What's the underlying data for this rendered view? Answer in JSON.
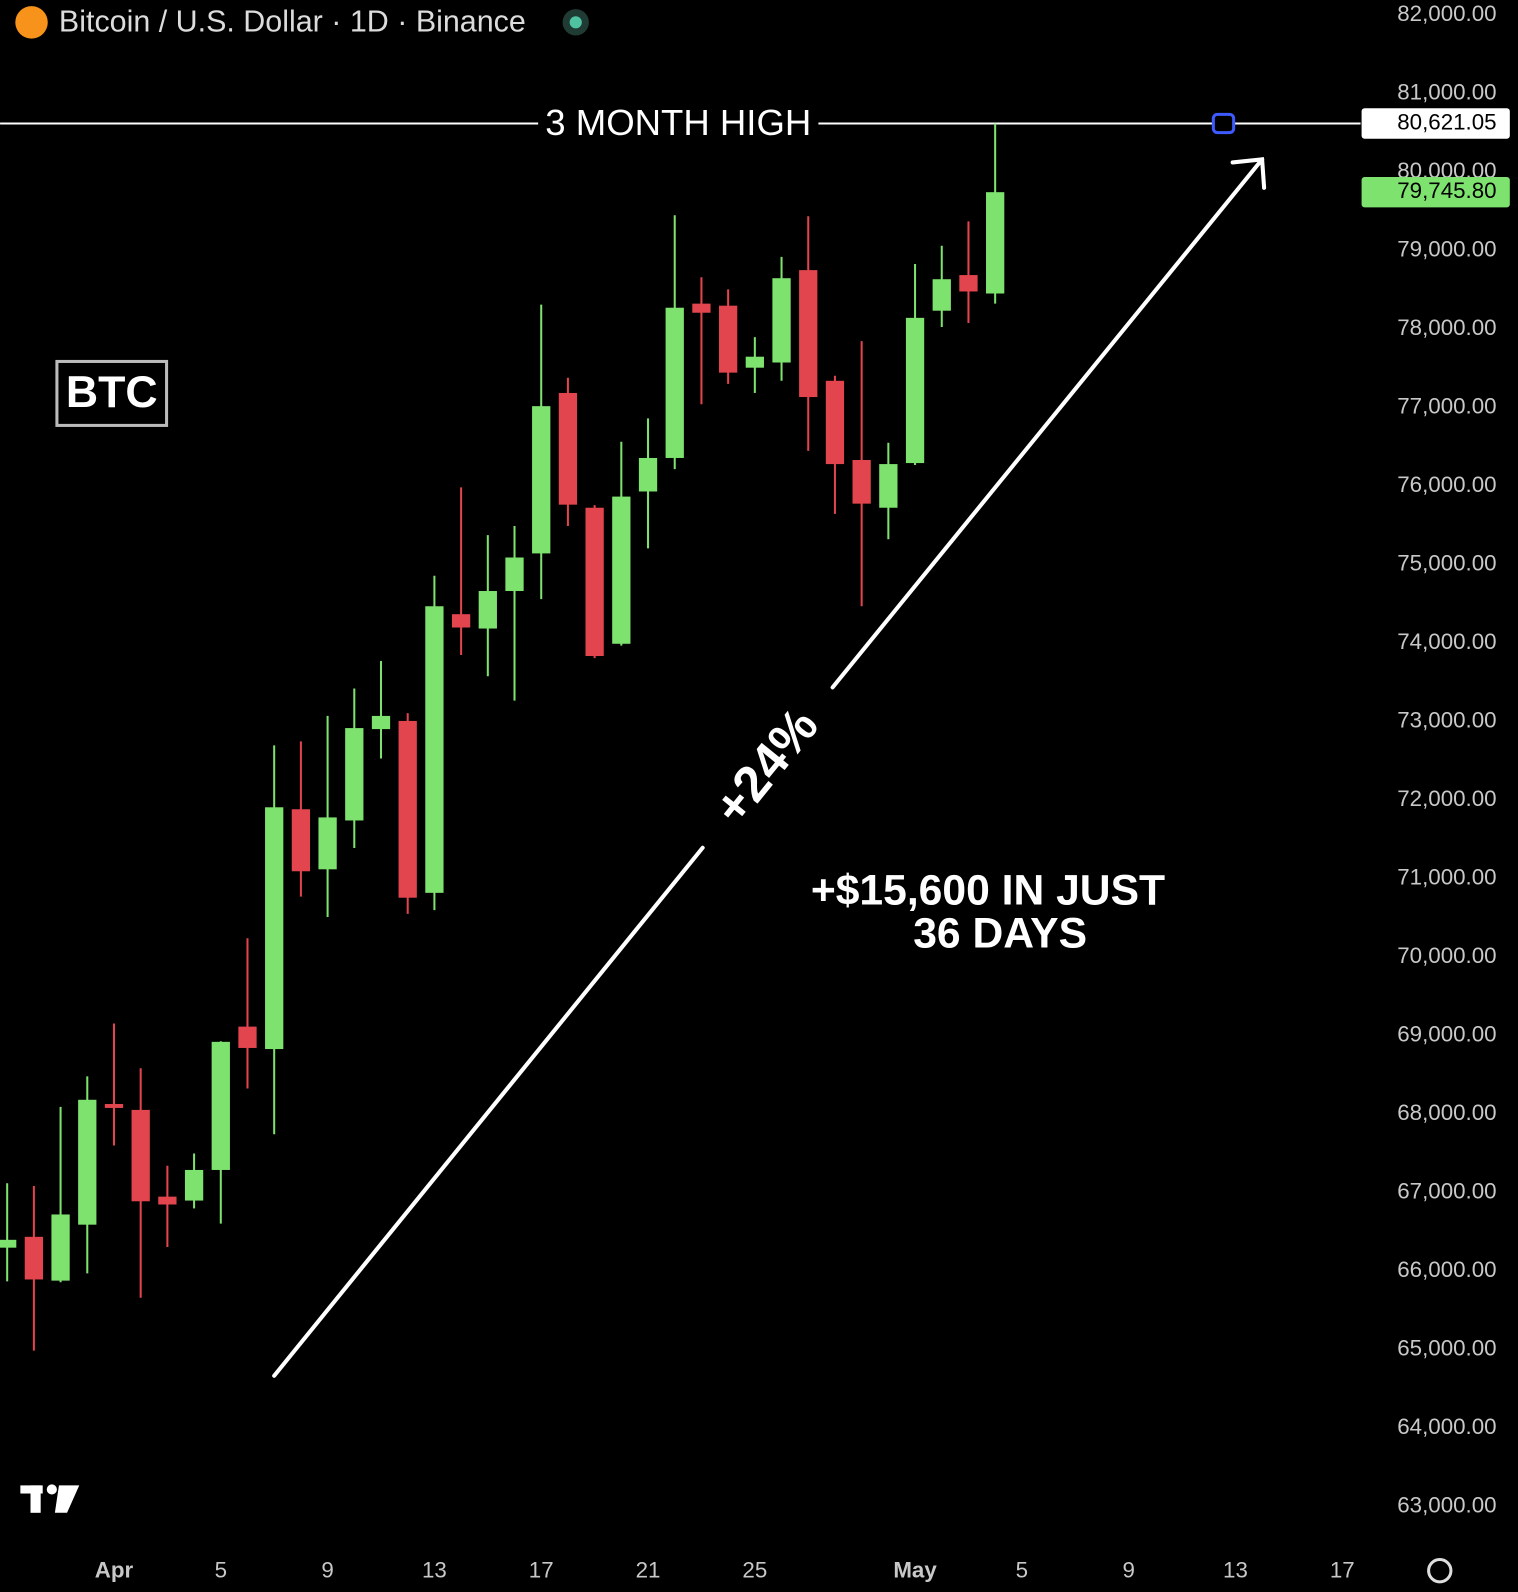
{
  "chart_data": {
    "type": "candlestick",
    "title": "Bitcoin / U.S. Dollar · 1D · Binance",
    "categories": [
      null,
      null,
      null,
      null,
      "Apr",
      null,
      null,
      null,
      "5",
      null,
      null,
      null,
      "9",
      null,
      null,
      null,
      "13",
      null,
      null,
      null,
      "17",
      null,
      null,
      null,
      "21",
      null,
      null,
      null,
      "25",
      null,
      null,
      null,
      null,
      null,
      "May",
      null,
      null,
      null,
      "5",
      null,
      null,
      null,
      "9",
      null,
      null,
      null,
      "13",
      null,
      null,
      null,
      "17"
    ],
    "open": [
      66300,
      66438,
      65880,
      66593,
      68130,
      68055,
      66950,
      66900,
      67290,
      69116,
      68830,
      71885,
      71120,
      71742,
      72906,
      73010,
      70820,
      74370,
      74187,
      74665,
      75144,
      77188,
      75726,
      73993,
      75933,
      76360,
      78326,
      78300,
      77510,
      77576,
      78753,
      77343,
      76334,
      75726,
      76295,
      78236,
      78690,
      78455,
      null,
      null,
      null,
      null,
      null,
      null,
      null,
      null,
      null,
      null,
      null,
      null,
      null
    ],
    "high": [
      67120,
      67085,
      68094,
      68482,
      69155,
      68586,
      67343,
      67500,
      68930,
      70241,
      72699,
      72750,
      73074,
      73423,
      73773,
      73110,
      74859,
      75985,
      75377,
      75493,
      78313,
      77382,
      75760,
      76567,
      76864,
      79452,
      78662,
      78507,
      77899,
      78921,
      79439,
      77408,
      77848,
      76554,
      78831,
      79064,
      79374,
      80621.05,
      null,
      null,
      null,
      null,
      null,
      null,
      null,
      null,
      null,
      null,
      null,
      null,
      null
    ],
    "low": [
      65870,
      64989,
      65860,
      65973,
      67602,
      65662,
      66309,
      66800,
      66606,
      68327,
      67745,
      70772,
      70513,
      71392,
      72531,
      70552,
      70600,
      73850,
      73579,
      73268,
      74562,
      75493,
      73810,
      73970,
      75209,
      76218,
      77045,
      77304,
      77188,
      77343,
      76450,
      75648,
      74471,
      75325,
      76270,
      78029,
      78080,
      78326,
      null,
      null,
      null,
      null,
      null,
      null,
      null,
      null,
      null,
      null,
      null,
      null,
      null
    ],
    "close": [
      66400,
      65895,
      66723,
      68184,
      68080,
      66891,
      66850,
      67290,
      68922,
      68844,
      71910,
      71095,
      71781,
      72919,
      73074,
      70758,
      74471,
      74200,
      74665,
      75092,
      77020,
      75765,
      73837,
      75868,
      76360,
      78274,
      78210,
      77447,
      77650,
      78650,
      77136,
      76282,
      75778,
      76282,
      78145,
      78637,
      78481,
      79745.8,
      null,
      null,
      null,
      null,
      null,
      null,
      null,
      null,
      null,
      null,
      null,
      null,
      null
    ],
    "up_color": "#7ee36e",
    "down_color": "#e2454d",
    "ylim": [
      63000,
      82000
    ],
    "yticks": [
      {
        "value": 82000,
        "label": "82,000.00"
      },
      {
        "value": 81000,
        "label": "81,000.00"
      },
      {
        "value": 80000,
        "label": "80,000.00"
      },
      {
        "value": 79000,
        "label": "79,000.00"
      },
      {
        "value": 78000,
        "label": "78,000.00"
      },
      {
        "value": 77000,
        "label": "77,000.00"
      },
      {
        "value": 76000,
        "label": "76,000.00"
      },
      {
        "value": 75000,
        "label": "75,000.00"
      },
      {
        "value": 74000,
        "label": "74,000.00"
      },
      {
        "value": 73000,
        "label": "73,000.00"
      },
      {
        "value": 72000,
        "label": "72,000.00"
      },
      {
        "value": 71000,
        "label": "71,000.00"
      },
      {
        "value": 70000,
        "label": "70,000.00"
      },
      {
        "value": 69000,
        "label": "69,000.00"
      },
      {
        "value": 68000,
        "label": "68,000.00"
      },
      {
        "value": 67000,
        "label": "67,000.00"
      },
      {
        "value": 66000,
        "label": "66,000.00"
      },
      {
        "value": 65000,
        "label": "65,000.00"
      },
      {
        "value": 64000,
        "label": "64,000.00"
      },
      {
        "value": 63000,
        "label": "63,000.00"
      }
    ],
    "grid": false,
    "hline": {
      "value": 80621.05,
      "label": "80,621.05",
      "text": "3 MONTH HIGH"
    },
    "last_price": {
      "value": 79745.8,
      "label": "79,745.80"
    },
    "annotations": {
      "ticker": "BTC",
      "gain_pct": "+24%",
      "gain_text": [
        "+$15,600 IN JUST",
        "36 DAYS"
      ]
    }
  }
}
